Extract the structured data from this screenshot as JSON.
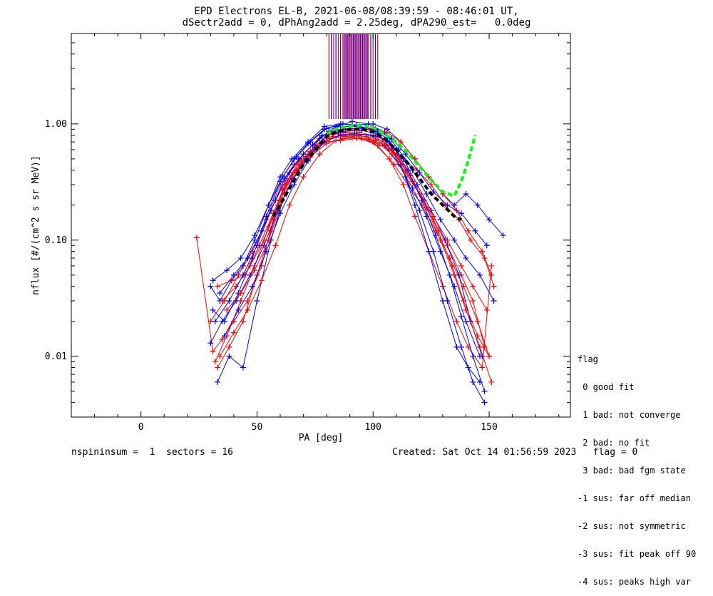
{
  "title_line1": "EPD Electrons EL-B, 2021-06-08/08:39:59 - 08:46:01 UT,",
  "title_line2": "dSectr2add = 0, dPhAng2add = 2.25deg, dPA290_est=   0.0deg",
  "footer_left": "nspininsum =  1  sectors = 16",
  "footer_right": "Created: Sat Oct 14 01:56:59 2023   flag = 0",
  "legend": {
    "title": "flag",
    "items": [
      " 0 good fit",
      " 1 bad: not converge",
      " 2 bad: no fit",
      " 3 bad: bad fgm state",
      "-1 sus: far off median",
      "-2 sus: not symmetric",
      "-3 sus: fit peak off 90",
      "-4 sus: peaks high var"
    ]
  },
  "colors": {
    "red": "#ff0000",
    "blue": "#0000ff",
    "green": "#00ff00",
    "black": "#000000"
  },
  "chart_data": {
    "type": "line",
    "xlabel": "PA [deg]",
    "ylabel": "nflux [#/(cm^2 s sr MeV)]",
    "xlim": [
      -30,
      185
    ],
    "ylim": [
      0.003,
      6
    ],
    "yscale": "log",
    "x_ticks": [
      0,
      50,
      100,
      150
    ],
    "y_ticks": [
      {
        "value": 0.01,
        "label": "0.01"
      },
      {
        "value": 0.1,
        "label": "0.10"
      },
      {
        "value": 1.0,
        "label": "1.00"
      }
    ],
    "series": [
      {
        "color": "red",
        "x": [
          24,
          31,
          35,
          40,
          46,
          52,
          57,
          62,
          70,
          78,
          85,
          92,
          100,
          107,
          113,
          118,
          124,
          130,
          136,
          141,
          147,
          151
        ],
        "y": [
          0.105,
          0.011,
          0.014,
          0.02,
          0.03,
          0.06,
          0.15,
          0.3,
          0.55,
          0.8,
          0.82,
          0.8,
          0.7,
          0.5,
          0.3,
          0.16,
          0.08,
          0.04,
          0.02,
          0.012,
          0.008,
          0.06
        ]
      },
      {
        "color": "blue",
        "x": [
          30,
          34,
          39,
          44,
          49,
          55,
          60,
          65,
          72,
          79,
          86,
          93,
          100,
          106,
          112,
          118,
          124,
          130,
          135,
          140,
          145,
          150,
          156
        ],
        "y": [
          0.04,
          0.03,
          0.045,
          0.06,
          0.1,
          0.2,
          0.35,
          0.5,
          0.7,
          0.95,
          1.0,
          0.98,
          1.0,
          0.9,
          0.7,
          0.5,
          0.35,
          0.25,
          0.2,
          0.25,
          0.2,
          0.15,
          0.11
        ]
      },
      {
        "color": "red",
        "x": [
          33,
          38,
          44,
          50,
          56,
          62,
          68,
          75,
          81,
          88,
          95,
          102,
          109,
          115,
          121,
          127,
          133,
          139,
          145,
          150
        ],
        "y": [
          0.008,
          0.012,
          0.02,
          0.05,
          0.12,
          0.28,
          0.45,
          0.65,
          0.75,
          0.78,
          0.75,
          0.65,
          0.45,
          0.3,
          0.2,
          0.12,
          0.07,
          0.04,
          0.02,
          0.01
        ]
      },
      {
        "color": "blue",
        "x": [
          33,
          38,
          44,
          50,
          56,
          62,
          68,
          75,
          81,
          88,
          95,
          102,
          108,
          114,
          120,
          126,
          132,
          138,
          143,
          148
        ],
        "y": [
          0.006,
          0.01,
          0.008,
          0.03,
          0.1,
          0.25,
          0.4,
          0.6,
          0.85,
          0.9,
          0.92,
          0.85,
          0.6,
          0.35,
          0.18,
          0.08,
          0.03,
          0.012,
          0.006,
          0.004
        ]
      },
      {
        "color": "red",
        "x": [
          30,
          36,
          42,
          48,
          54,
          60,
          66,
          72,
          79,
          86,
          93,
          100,
          107,
          113,
          119,
          125,
          131,
          137,
          142,
          148,
          152
        ],
        "y": [
          0.02,
          0.03,
          0.05,
          0.08,
          0.15,
          0.3,
          0.45,
          0.55,
          0.7,
          0.72,
          0.75,
          0.7,
          0.6,
          0.5,
          0.4,
          0.3,
          0.2,
          0.15,
          0.1,
          0.07,
          0.04
        ]
      },
      {
        "color": "blue",
        "x": [
          31,
          36,
          42,
          48,
          54,
          60,
          66,
          72,
          79,
          86,
          93,
          100,
          106,
          112,
          118,
          124,
          130,
          136,
          141,
          146
        ],
        "y": [
          0.025,
          0.02,
          0.035,
          0.07,
          0.16,
          0.32,
          0.5,
          0.68,
          0.9,
          0.95,
          0.95,
          0.9,
          0.75,
          0.45,
          0.2,
          0.08,
          0.03,
          0.012,
          0.008,
          0.006
        ]
      },
      {
        "color": "red",
        "x": [
          32,
          37,
          43,
          49,
          55,
          61,
          67,
          73,
          80,
          87,
          94,
          101,
          108,
          114,
          120,
          126,
          132,
          138,
          143,
          148
        ],
        "y": [
          0.009,
          0.015,
          0.03,
          0.06,
          0.13,
          0.27,
          0.4,
          0.58,
          0.8,
          0.85,
          0.85,
          0.78,
          0.6,
          0.4,
          0.25,
          0.15,
          0.09,
          0.05,
          0.03,
          0.012
        ]
      },
      {
        "color": "blue",
        "x": [
          34,
          40,
          46,
          52,
          58,
          64,
          70,
          77,
          84,
          91,
          98,
          105,
          111,
          117,
          123,
          129,
          135,
          140,
          146,
          152
        ],
        "y": [
          0.035,
          0.05,
          0.07,
          0.12,
          0.22,
          0.38,
          0.55,
          0.75,
          0.95,
          1.05,
          1.0,
          0.85,
          0.6,
          0.4,
          0.25,
          0.15,
          0.1,
          0.07,
          0.05,
          0.03
        ]
      },
      {
        "color": "red",
        "x": [
          35,
          41,
          47,
          53,
          59,
          65,
          71,
          78,
          85,
          92,
          99,
          106,
          112,
          118,
          124,
          130,
          136,
          141,
          147,
          151
        ],
        "y": [
          0.03,
          0.04,
          0.06,
          0.1,
          0.2,
          0.35,
          0.5,
          0.7,
          0.85,
          0.88,
          0.9,
          0.85,
          0.7,
          0.5,
          0.35,
          0.25,
          0.18,
          0.12,
          0.08,
          0.05
        ]
      },
      {
        "color": "blue",
        "x": [
          30,
          35,
          41,
          47,
          53,
          59,
          65,
          71,
          78,
          85,
          92,
          99,
          105,
          111,
          117,
          123,
          129,
          135,
          140,
          146
        ],
        "y": [
          0.013,
          0.02,
          0.03,
          0.05,
          0.09,
          0.18,
          0.33,
          0.5,
          0.8,
          0.85,
          0.82,
          0.8,
          0.65,
          0.45,
          0.28,
          0.16,
          0.08,
          0.04,
          0.02,
          0.01
        ]
      },
      {
        "color": "red",
        "x": [
          33,
          39,
          45,
          51,
          57,
          63,
          69,
          76,
          83,
          90,
          97,
          104,
          110,
          116,
          122,
          128,
          134,
          139,
          145,
          150
        ],
        "y": [
          0.04,
          0.045,
          0.05,
          0.09,
          0.17,
          0.32,
          0.48,
          0.62,
          0.78,
          0.8,
          0.78,
          0.72,
          0.55,
          0.36,
          0.22,
          0.12,
          0.06,
          0.03,
          0.015,
          0.01
        ]
      },
      {
        "color": "blue",
        "x": [
          36,
          42,
          48,
          54,
          60,
          66,
          72,
          79,
          86,
          93,
          100,
          107,
          113,
          119,
          125,
          131,
          137,
          142,
          147
        ],
        "y": [
          0.015,
          0.025,
          0.04,
          0.08,
          0.17,
          0.3,
          0.48,
          0.7,
          0.8,
          0.82,
          0.8,
          0.7,
          0.5,
          0.3,
          0.18,
          0.1,
          0.05,
          0.02,
          0.01
        ]
      },
      {
        "color": "red",
        "x": [
          37,
          43,
          49,
          55,
          61,
          67,
          73,
          80,
          87,
          94,
          101,
          108,
          114,
          120,
          126,
          132,
          138,
          143,
          149
        ],
        "y": [
          0.025,
          0.035,
          0.055,
          0.1,
          0.22,
          0.38,
          0.52,
          0.68,
          0.75,
          0.8,
          0.72,
          0.55,
          0.38,
          0.25,
          0.16,
          0.1,
          0.06,
          0.04,
          0.025
        ]
      },
      {
        "color": "blue",
        "x": [
          31,
          37,
          43,
          49,
          55,
          61,
          67,
          73,
          80,
          87,
          94,
          101,
          108,
          114,
          120,
          126,
          132,
          138,
          144,
          149
        ],
        "y": [
          0.045,
          0.055,
          0.07,
          0.11,
          0.2,
          0.35,
          0.52,
          0.7,
          0.92,
          1.0,
          0.95,
          0.9,
          0.75,
          0.55,
          0.38,
          0.26,
          0.2,
          0.17,
          0.12,
          0.09
        ]
      },
      {
        "color": "red",
        "x": [
          34,
          40,
          46,
          52,
          58,
          64,
          70,
          77,
          84,
          91,
          98,
          105,
          111,
          117,
          123,
          129,
          135,
          140,
          146,
          151
        ],
        "y": [
          0.01,
          0.016,
          0.025,
          0.045,
          0.09,
          0.2,
          0.35,
          0.55,
          0.72,
          0.76,
          0.74,
          0.66,
          0.5,
          0.32,
          0.19,
          0.1,
          0.05,
          0.025,
          0.012,
          0.006
        ]
      },
      {
        "color": "blue",
        "x": [
          32,
          38,
          44,
          50,
          56,
          62,
          68,
          74,
          81,
          88,
          95,
          102,
          109,
          115,
          121,
          127,
          133,
          138,
          143,
          148
        ],
        "y": [
          0.02,
          0.03,
          0.05,
          0.09,
          0.18,
          0.34,
          0.5,
          0.66,
          0.86,
          0.9,
          0.88,
          0.82,
          0.62,
          0.4,
          0.22,
          0.11,
          0.05,
          0.022,
          0.01,
          0.005
        ]
      },
      {
        "color": "green",
        "style": "dashed",
        "x": [
          80,
          85,
          90,
          95,
          100,
          105,
          110,
          115,
          120,
          125,
          130,
          135,
          138,
          141,
          144
        ],
        "y": [
          0.82,
          0.92,
          0.96,
          0.97,
          0.93,
          0.82,
          0.7,
          0.56,
          0.43,
          0.33,
          0.26,
          0.24,
          0.32,
          0.48,
          0.8
        ]
      },
      {
        "color": "black",
        "style": "dashed",
        "x": [
          57,
          61,
          65,
          70,
          75,
          80,
          85,
          90,
          95,
          100,
          105,
          110,
          115,
          120,
          125,
          130,
          135,
          138
        ],
        "y": [
          0.16,
          0.22,
          0.3,
          0.45,
          0.6,
          0.78,
          0.87,
          0.9,
          0.9,
          0.86,
          0.74,
          0.6,
          0.46,
          0.34,
          0.25,
          0.2,
          0.16,
          0.15
        ]
      }
    ],
    "vertical_spikes": {
      "color_mix": [
        "red",
        "blue"
      ],
      "x": [
        81,
        82,
        83,
        84,
        85,
        86,
        87,
        87.5,
        88,
        88.5,
        89,
        89.5,
        90,
        90.5,
        91,
        91.5,
        92,
        92.5,
        93,
        93.5,
        94,
        94.5,
        95,
        95.5,
        96,
        96.5,
        97,
        97.5,
        98,
        99,
        100,
        101,
        102
      ],
      "y_bottom": 1.1
    }
  }
}
